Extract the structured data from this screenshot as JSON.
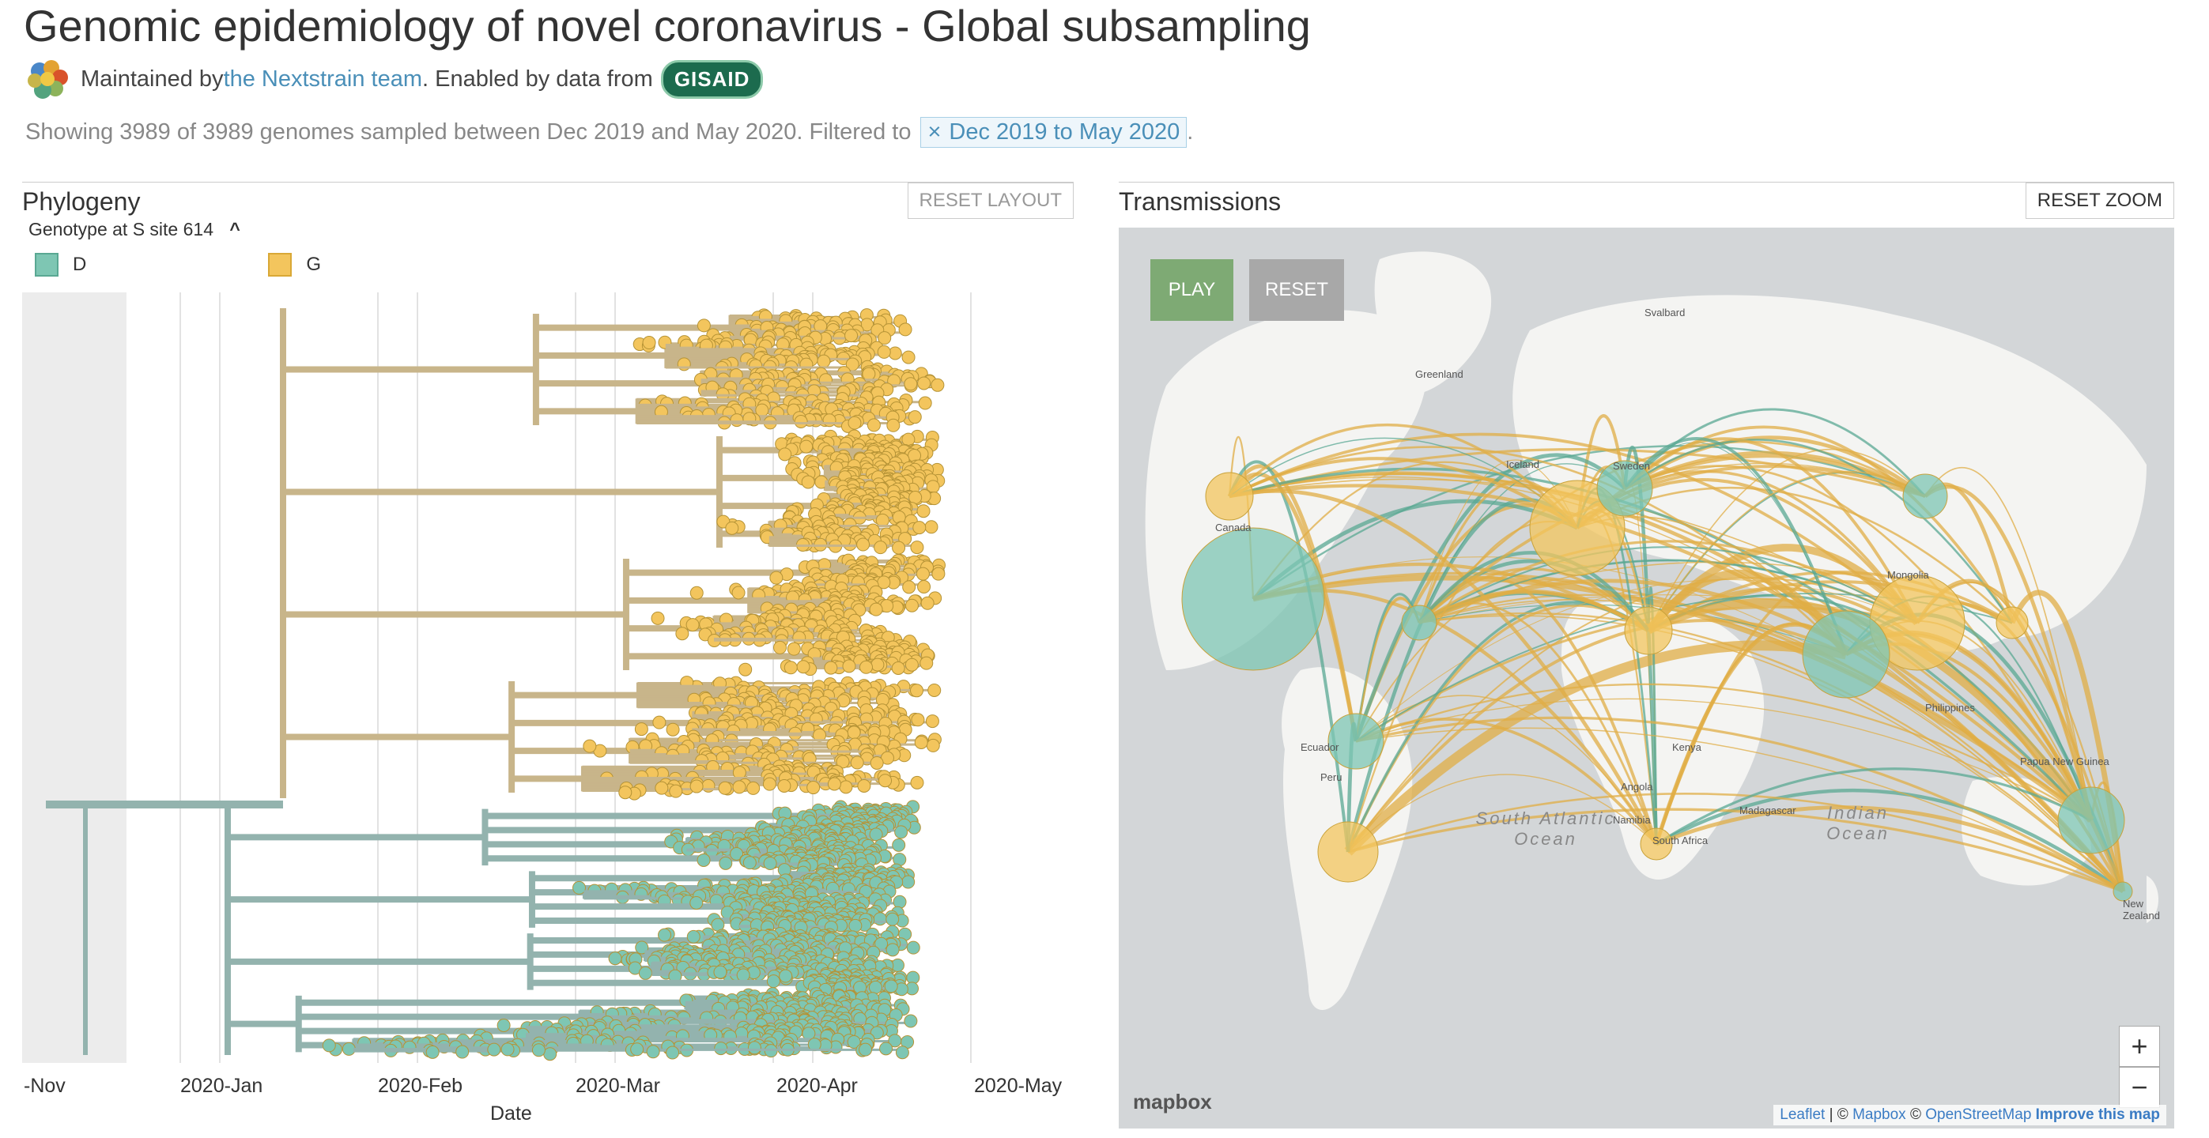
{
  "header": {
    "title": "Genomic epidemiology of novel coronavirus - Global subsampling",
    "maintained_prefix": "Maintained by ",
    "maintainer_link": "the Nextstrain team",
    "enabled_text": ". Enabled by data from ",
    "gisaid_label": "GISAID",
    "showing_text": "Showing 3989 of 3989 genomes sampled between Dec 2019 and May 2020. Filtered to",
    "filter_chip_x": "×",
    "filter_chip": "Dec 2019 to May 2020",
    "trailing_period": "."
  },
  "phylogeny": {
    "title": "Phylogeny",
    "reset_label": "RESET LAYOUT",
    "legend_title": "Genotype at S site 614",
    "legend_chevron": "^",
    "legend": [
      {
        "label": "D",
        "color": "#7ec6b3"
      },
      {
        "label": "G",
        "color": "#f3c55d"
      }
    ],
    "x_ticks": [
      "-Nov",
      "2020-Jan",
      "2020-Feb",
      "2020-Mar",
      "2020-Apr",
      "2020-May"
    ],
    "x_label": "Date",
    "branch_colors": {
      "G": "#c8b58a",
      "D": "#93b3ae"
    }
  },
  "transmissions": {
    "title": "Transmissions",
    "reset_label": "RESET ZOOM",
    "play_label": "PLAY",
    "reset_map_label": "RESET",
    "zoom_in": "+",
    "zoom_out": "−",
    "mapbox_logo": "mapbox",
    "attribution": {
      "leaflet": "Leaflet",
      "sep1": " | © ",
      "mapbox": "Mapbox",
      "sep2": " © ",
      "osm": "OpenStreetMap",
      "improve": "Improve this map"
    },
    "places": [
      "Greenland",
      "Svalbard",
      "Canada",
      "Iceland",
      "Sweden",
      "Mongolia",
      "Philippines",
      "Papua New Guinea",
      "Peru",
      "Angola",
      "Namibia",
      "South Africa",
      "Madagascar",
      "New Zealand",
      "Ecuador",
      "Kenya"
    ],
    "oceans": [
      "South Atlantic Ocean",
      "Indian Ocean"
    ]
  }
}
